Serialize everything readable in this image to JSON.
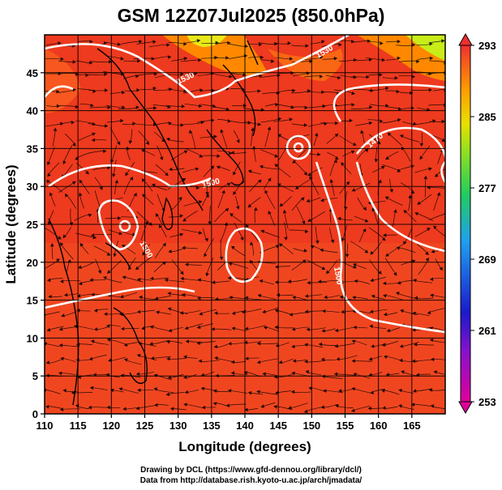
{
  "title": "GSM 12Z07Jul2025 (850.0hPa)",
  "axes": {
    "xlabel": "Longitude (degrees)",
    "ylabel": "Latitude  (degrees)",
    "xticks": [
      "110",
      "115",
      "120",
      "125",
      "130",
      "135",
      "140",
      "145",
      "150",
      "155",
      "160",
      "165"
    ],
    "yticks": [
      "0",
      "5",
      "10",
      "15",
      "20",
      "25",
      "30",
      "35",
      "40",
      "45"
    ],
    "xlim": [
      110,
      170
    ],
    "ylim": [
      0,
      50
    ]
  },
  "colorbar": {
    "ticks": [
      "253",
      "261",
      "269",
      "277",
      "285",
      "293"
    ],
    "range": [
      253,
      293
    ],
    "colors": [
      "#cc22cc",
      "#2222cc",
      "#22aaee",
      "#22dd22",
      "#ffaa00",
      "#ee3333"
    ]
  },
  "contour_labels": [
    "1530",
    "1530",
    "1500",
    "1470",
    "1500",
    "1500"
  ],
  "credits": {
    "line1": "Drawing by DCL (https://www.gfd-dennou.org/library/dcl/)",
    "line2": "Data from http://database.rish.kyoto-u.ac.jp/arch/jmadata/"
  },
  "colors": {
    "field_main": "#ee3a1e",
    "field_warm": "#f04a28",
    "field_cool": "#ff8a00",
    "field_cold": "#d8ee20",
    "contour": "#ffffff",
    "coast": "#000000"
  }
}
